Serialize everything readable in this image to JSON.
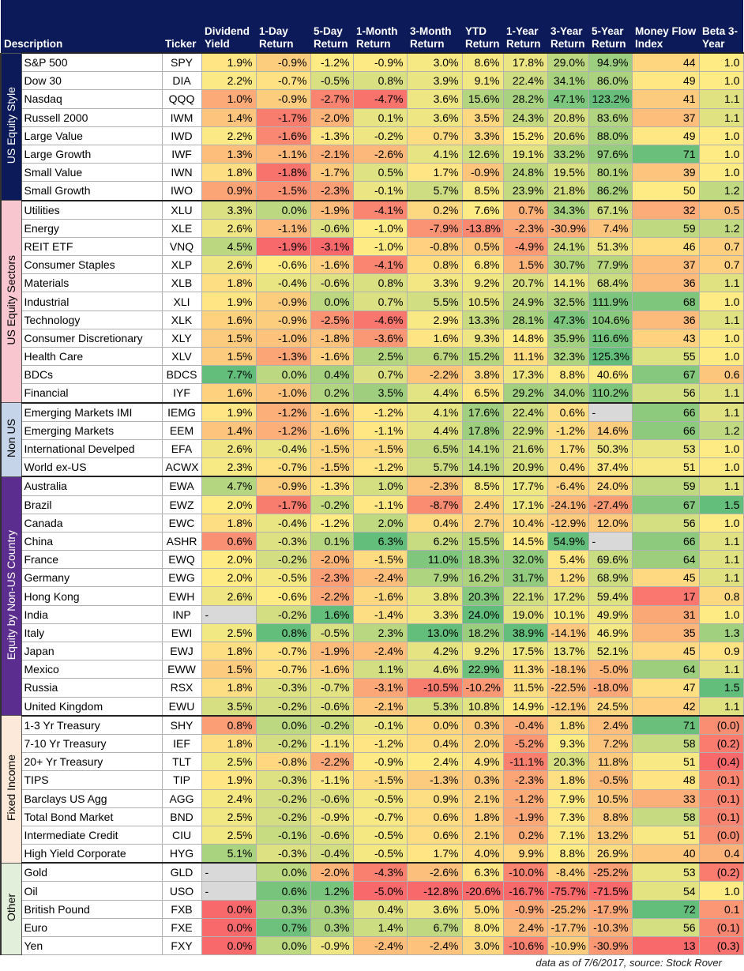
{
  "headers": {
    "description": "Description",
    "ticker": "Ticker",
    "dividend_yield": "Dividend Yield",
    "day1": "1-Day Return",
    "day5": "5-Day Return",
    "month1": "1-Month Return",
    "month3": "3-Month Return",
    "ytd": "YTD Return",
    "year1": "1-Year Return",
    "year3": "3-Year Return",
    "year5": "5-Year Return",
    "mfi": "Money Flow Index",
    "beta": "Beta 3-Year"
  },
  "groups": [
    {
      "name": "US Equity Style",
      "color": "#0d1a5a",
      "text_color": "#ffffff",
      "rows": [
        {
          "desc": "S&P 500",
          "ticker": "SPY",
          "values": [
            "1.9%",
            "-0.9%",
            "-1.2%",
            "-0.9%",
            "3.0%",
            "8.6%",
            "17.8%",
            "29.0%",
            "94.9%",
            "44",
            "1.0"
          ]
        },
        {
          "desc": "Dow 30",
          "ticker": "DIA",
          "values": [
            "2.2%",
            "-0.7%",
            "-0.5%",
            "0.8%",
            "3.9%",
            "9.1%",
            "22.4%",
            "34.1%",
            "86.0%",
            "49",
            "1.0"
          ]
        },
        {
          "desc": "Nasdaq",
          "ticker": "QQQ",
          "values": [
            "1.0%",
            "-0.9%",
            "-2.7%",
            "-4.7%",
            "3.6%",
            "15.6%",
            "28.2%",
            "47.1%",
            "123.2%",
            "41",
            "1.1"
          ]
        },
        {
          "desc": "Russell 2000",
          "ticker": "IWM",
          "values": [
            "1.4%",
            "-1.7%",
            "-2.0%",
            "0.1%",
            "3.6%",
            "3.5%",
            "24.3%",
            "20.8%",
            "83.6%",
            "37",
            "1.1"
          ]
        },
        {
          "desc": "Large Value",
          "ticker": "IWD",
          "values": [
            "2.2%",
            "-1.6%",
            "-1.3%",
            "-0.2%",
            "0.7%",
            "3.3%",
            "15.2%",
            "20.6%",
            "88.0%",
            "49",
            "1.0"
          ]
        },
        {
          "desc": "Large Growth",
          "ticker": "IWF",
          "values": [
            "1.3%",
            "-1.1%",
            "-2.1%",
            "-2.6%",
            "4.1%",
            "12.6%",
            "19.1%",
            "33.2%",
            "97.6%",
            "71",
            "1.0"
          ]
        },
        {
          "desc": "Small Value",
          "ticker": "IWN",
          "values": [
            "1.8%",
            "-1.8%",
            "-1.7%",
            "0.5%",
            "1.7%",
            "-0.9%",
            "24.8%",
            "19.5%",
            "80.1%",
            "39",
            "1.0"
          ]
        },
        {
          "desc": "Small Growth",
          "ticker": "IWO",
          "values": [
            "0.9%",
            "-1.5%",
            "-2.3%",
            "-0.1%",
            "5.7%",
            "8.5%",
            "23.9%",
            "21.8%",
            "86.2%",
            "50",
            "1.2"
          ]
        }
      ]
    },
    {
      "name": "US Equity Sectors",
      "color": "#f7c6cf",
      "text_color": "#000000",
      "rows": [
        {
          "desc": "Utilities",
          "ticker": "XLU",
          "values": [
            "3.3%",
            "0.0%",
            "-1.9%",
            "-4.1%",
            "0.2%",
            "7.6%",
            "0.7%",
            "34.3%",
            "67.1%",
            "32",
            "0.5"
          ]
        },
        {
          "desc": "Energy",
          "ticker": "XLE",
          "values": [
            "2.6%",
            "-1.1%",
            "-0.6%",
            "-1.0%",
            "-7.9%",
            "-13.8%",
            "-2.3%",
            "-30.9%",
            "7.4%",
            "59",
            "1.2"
          ]
        },
        {
          "desc": "REIT ETF",
          "ticker": "VNQ",
          "values": [
            "4.5%",
            "-1.9%",
            "-3.1%",
            "-1.0%",
            "-0.8%",
            "0.5%",
            "-4.9%",
            "24.1%",
            "51.3%",
            "46",
            "0.7"
          ]
        },
        {
          "desc": "Consumer Staples",
          "ticker": "XLP",
          "values": [
            "2.6%",
            "-0.6%",
            "-1.6%",
            "-4.1%",
            "0.8%",
            "6.8%",
            "1.5%",
            "30.7%",
            "77.9%",
            "37",
            "0.7"
          ]
        },
        {
          "desc": "Materials",
          "ticker": "XLB",
          "values": [
            "1.8%",
            "-0.4%",
            "-0.6%",
            "0.8%",
            "3.3%",
            "9.2%",
            "20.7%",
            "14.1%",
            "68.4%",
            "36",
            "1.1"
          ]
        },
        {
          "desc": "Industrial",
          "ticker": "XLI",
          "values": [
            "1.9%",
            "-0.9%",
            "0.0%",
            "0.7%",
            "5.5%",
            "10.5%",
            "24.9%",
            "32.5%",
            "111.9%",
            "68",
            "1.0"
          ]
        },
        {
          "desc": "Technology",
          "ticker": "XLK",
          "values": [
            "1.6%",
            "-0.9%",
            "-2.5%",
            "-4.6%",
            "2.9%",
            "13.3%",
            "28.1%",
            "47.3%",
            "104.6%",
            "36",
            "1.1"
          ]
        },
        {
          "desc": "Consumer Discretionary",
          "ticker": "XLY",
          "values": [
            "1.5%",
            "-1.0%",
            "-1.8%",
            "-3.6%",
            "1.6%",
            "9.3%",
            "14.8%",
            "35.9%",
            "116.6%",
            "43",
            "1.0"
          ]
        },
        {
          "desc": "Health Care",
          "ticker": "XLV",
          "values": [
            "1.5%",
            "-1.3%",
            "-1.6%",
            "2.5%",
            "6.7%",
            "15.2%",
            "11.1%",
            "32.3%",
            "125.3%",
            "55",
            "1.0"
          ]
        },
        {
          "desc": "BDCs",
          "ticker": "BDCS",
          "values": [
            "7.7%",
            "0.0%",
            "0.4%",
            "0.7%",
            "-2.2%",
            "3.8%",
            "17.3%",
            "8.8%",
            "40.6%",
            "67",
            "0.6"
          ]
        },
        {
          "desc": "Financial",
          "ticker": "IYF",
          "values": [
            "1.6%",
            "-1.0%",
            "0.2%",
            "3.5%",
            "4.4%",
            "6.5%",
            "29.2%",
            "34.0%",
            "110.2%",
            "56",
            "1.1"
          ]
        }
      ]
    },
    {
      "name": "Non US",
      "color": "#c5d4e8",
      "text_color": "#000000",
      "rows": [
        {
          "desc": "Emerging Markets IMI",
          "ticker": "IEMG",
          "values": [
            "1.9%",
            "-1.2%",
            "-1.6%",
            "-1.2%",
            "4.1%",
            "17.6%",
            "22.4%",
            "0.6%",
            "-",
            "66",
            "1.1"
          ]
        },
        {
          "desc": "Emerging Markets",
          "ticker": "EEM",
          "values": [
            "1.4%",
            "-1.2%",
            "-1.6%",
            "-1.1%",
            "4.4%",
            "17.8%",
            "22.9%",
            "-1.2%",
            "14.6%",
            "66",
            "1.2"
          ]
        },
        {
          "desc": "International Develped",
          "ticker": "EFA",
          "values": [
            "2.6%",
            "-0.4%",
            "-1.5%",
            "-1.5%",
            "6.5%",
            "14.1%",
            "21.6%",
            "1.7%",
            "50.3%",
            "53",
            "1.0"
          ]
        },
        {
          "desc": "World ex-US",
          "ticker": "ACWX",
          "values": [
            "2.3%",
            "-0.7%",
            "-1.5%",
            "-1.2%",
            "5.7%",
            "14.1%",
            "20.9%",
            "0.4%",
            "37.4%",
            "51",
            "1.0"
          ]
        }
      ]
    },
    {
      "name": "Equity by Non-US Country",
      "color": "#5b2d8e",
      "text_color": "#ffffff",
      "rows": [
        {
          "desc": "Australia",
          "ticker": "EWA",
          "values": [
            "4.7%",
            "-0.9%",
            "-1.3%",
            "1.0%",
            "-2.3%",
            "8.5%",
            "17.7%",
            "-6.4%",
            "24.0%",
            "59",
            "1.1"
          ]
        },
        {
          "desc": "Brazil",
          "ticker": "EWZ",
          "values": [
            "2.0%",
            "-1.7%",
            "-0.2%",
            "-1.1%",
            "-8.7%",
            "2.4%",
            "17.1%",
            "-24.1%",
            "-27.4%",
            "67",
            "1.5"
          ]
        },
        {
          "desc": "Canada",
          "ticker": "EWC",
          "values": [
            "1.8%",
            "-0.4%",
            "-1.2%",
            "2.0%",
            "0.4%",
            "2.7%",
            "10.4%",
            "-12.9%",
            "12.0%",
            "56",
            "1.0"
          ]
        },
        {
          "desc": "China",
          "ticker": "ASHR",
          "values": [
            "0.6%",
            "-0.3%",
            "0.1%",
            "6.3%",
            "6.2%",
            "15.5%",
            "14.5%",
            "54.9%",
            "-",
            "66",
            "1.1"
          ]
        },
        {
          "desc": "France",
          "ticker": "EWQ",
          "values": [
            "2.0%",
            "-0.2%",
            "-2.0%",
            "-1.5%",
            "11.0%",
            "18.3%",
            "32.0%",
            "5.4%",
            "69.6%",
            "64",
            "1.1"
          ]
        },
        {
          "desc": "Germany",
          "ticker": "EWG",
          "values": [
            "2.0%",
            "-0.5%",
            "-2.3%",
            "-2.4%",
            "7.9%",
            "16.2%",
            "31.7%",
            "1.2%",
            "68.9%",
            "45",
            "1.1"
          ]
        },
        {
          "desc": "Hong Kong",
          "ticker": "EWH",
          "values": [
            "2.6%",
            "-0.6%",
            "-2.2%",
            "-1.6%",
            "3.8%",
            "20.3%",
            "22.1%",
            "17.2%",
            "59.4%",
            "17",
            "0.8"
          ]
        },
        {
          "desc": "India",
          "ticker": "INP",
          "values": [
            "-",
            "-0.2%",
            "1.6%",
            "-1.4%",
            "3.3%",
            "24.0%",
            "19.0%",
            "10.1%",
            "49.9%",
            "31",
            "1.0"
          ]
        },
        {
          "desc": "Italy",
          "ticker": "EWI",
          "values": [
            "2.5%",
            "0.8%",
            "-0.5%",
            "2.3%",
            "13.0%",
            "18.2%",
            "38.9%",
            "-14.1%",
            "46.9%",
            "35",
            "1.3"
          ]
        },
        {
          "desc": "Japan",
          "ticker": "EWJ",
          "values": [
            "1.8%",
            "-0.7%",
            "-1.9%",
            "-2.4%",
            "4.2%",
            "9.2%",
            "17.5%",
            "13.7%",
            "52.1%",
            "45",
            "0.9"
          ]
        },
        {
          "desc": "Mexico",
          "ticker": "EWW",
          "values": [
            "1.5%",
            "-0.7%",
            "-1.6%",
            "1.1%",
            "4.6%",
            "22.9%",
            "11.3%",
            "-18.1%",
            "-5.0%",
            "64",
            "1.1"
          ]
        },
        {
          "desc": "Russia",
          "ticker": "RSX",
          "values": [
            "1.8%",
            "-0.3%",
            "-0.7%",
            "-3.1%",
            "-10.5%",
            "-10.2%",
            "11.5%",
            "-22.5%",
            "-18.0%",
            "47",
            "1.5"
          ]
        },
        {
          "desc": "United Kingdom",
          "ticker": "EWU",
          "values": [
            "3.5%",
            "-0.2%",
            "-0.6%",
            "-2.1%",
            "5.3%",
            "10.8%",
            "14.9%",
            "-12.1%",
            "24.5%",
            "42",
            "1.1"
          ]
        }
      ]
    },
    {
      "name": "Fixed Income",
      "color": "#fde9d9",
      "text_color": "#000000",
      "rows": [
        {
          "desc": "1-3 Yr Treasury",
          "ticker": "SHY",
          "values": [
            "0.8%",
            "0.0%",
            "-0.2%",
            "-0.1%",
            "0.0%",
            "0.3%",
            "-0.4%",
            "1.8%",
            "2.4%",
            "71",
            "(0.0)"
          ]
        },
        {
          "desc": "7-10 Yr Treasury",
          "ticker": "IEF",
          "values": [
            "1.8%",
            "-0.2%",
            "-1.1%",
            "-1.2%",
            "0.4%",
            "2.0%",
            "-5.2%",
            "9.3%",
            "7.2%",
            "58",
            "(0.2)"
          ]
        },
        {
          "desc": "20+ Yr Treasury",
          "ticker": "TLT",
          "values": [
            "2.5%",
            "-0.8%",
            "-2.2%",
            "-0.9%",
            "2.4%",
            "4.9%",
            "-11.1%",
            "20.3%",
            "11.8%",
            "51",
            "(0.4)"
          ]
        },
        {
          "desc": "TIPS",
          "ticker": "TIP",
          "values": [
            "1.9%",
            "-0.3%",
            "-1.1%",
            "-1.5%",
            "-1.3%",
            "0.3%",
            "-2.3%",
            "1.8%",
            "-0.5%",
            "48",
            "(0.1)"
          ]
        },
        {
          "desc": "Barclays US Agg",
          "ticker": "AGG",
          "values": [
            "2.4%",
            "-0.2%",
            "-0.6%",
            "-0.5%",
            "0.9%",
            "2.1%",
            "-1.2%",
            "7.9%",
            "10.5%",
            "33",
            "(0.1)"
          ]
        },
        {
          "desc": "Total Bond Market",
          "ticker": "BND",
          "values": [
            "2.5%",
            "-0.2%",
            "-0.9%",
            "-0.7%",
            "0.6%",
            "1.8%",
            "-1.9%",
            "7.3%",
            "8.8%",
            "58",
            "(0.1)"
          ]
        },
        {
          "desc": "Intermediate Credit",
          "ticker": "CIU",
          "values": [
            "2.5%",
            "-0.1%",
            "-0.6%",
            "-0.5%",
            "0.6%",
            "2.1%",
            "0.2%",
            "7.1%",
            "13.2%",
            "51",
            "(0.0)"
          ]
        },
        {
          "desc": "High Yield Corporate",
          "ticker": "HYG",
          "values": [
            "5.1%",
            "-0.3%",
            "-0.4%",
            "-0.5%",
            "1.7%",
            "4.0%",
            "9.9%",
            "8.8%",
            "26.9%",
            "40",
            "0.4"
          ]
        }
      ]
    },
    {
      "name": "Other",
      "color": "#e2efda",
      "text_color": "#000000",
      "rows": [
        {
          "desc": "Gold",
          "ticker": "GLD",
          "values": [
            "-",
            "0.0%",
            "-2.0%",
            "-4.3%",
            "-2.6%",
            "6.3%",
            "-10.0%",
            "-8.4%",
            "-25.2%",
            "53",
            "(0.2)"
          ]
        },
        {
          "desc": "Oil",
          "ticker": "USO",
          "values": [
            "-",
            "0.6%",
            "1.2%",
            "-5.0%",
            "-12.8%",
            "-20.6%",
            "-16.7%",
            "-75.7%",
            "-71.5%",
            "54",
            "1.0"
          ]
        },
        {
          "desc": "British Pound",
          "ticker": "FXB",
          "values": [
            "0.0%",
            "0.3%",
            "0.3%",
            "0.4%",
            "3.6%",
            "5.0%",
            "-0.9%",
            "-25.2%",
            "-17.9%",
            "72",
            "0.1"
          ]
        },
        {
          "desc": "Euro",
          "ticker": "FXE",
          "values": [
            "0.0%",
            "0.7%",
            "0.3%",
            "1.4%",
            "6.7%",
            "8.0%",
            "2.4%",
            "-17.7%",
            "-10.3%",
            "56",
            "(0.1)"
          ]
        },
        {
          "desc": "Yen",
          "ticker": "FXY",
          "values": [
            "0.0%",
            "0.0%",
            "-0.9%",
            "-2.4%",
            "-2.4%",
            "3.0%",
            "-10.6%",
            "-10.9%",
            "-30.9%",
            "13",
            "(0.3)"
          ]
        }
      ]
    }
  ],
  "footnote": "data as of 7/6/2017, source: Stock Rover"
}
